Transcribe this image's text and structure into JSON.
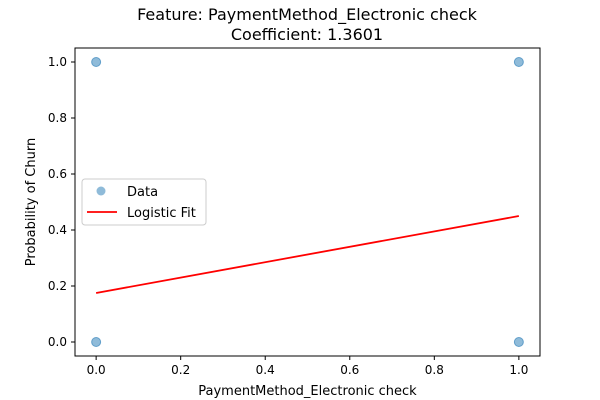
{
  "chart_data": {
    "type": "scatter",
    "title": "Feature: PaymentMethod_Electronic check",
    "subtitle": "Coefficient: 1.3601",
    "xlabel": "PaymentMethod_Electronic check",
    "ylabel": "Probability of Churn",
    "xlim": [
      -0.05,
      1.05
    ],
    "ylim": [
      -0.05,
      1.05
    ],
    "xticks": [
      0.0,
      0.2,
      0.4,
      0.6,
      0.8,
      1.0
    ],
    "yticks": [
      0.0,
      0.2,
      0.4,
      0.6,
      0.8,
      1.0
    ],
    "xtick_labels": [
      "0.0",
      "0.2",
      "0.4",
      "0.6",
      "0.8",
      "1.0"
    ],
    "ytick_labels": [
      "0.0",
      "0.2",
      "0.4",
      "0.6",
      "0.8",
      "1.0"
    ],
    "grid": false,
    "legend_position": "center-left",
    "series": [
      {
        "name": "Data",
        "kind": "scatter",
        "color": "#1f77b4",
        "points": [
          {
            "x": 0,
            "y": 0
          },
          {
            "x": 0,
            "y": 1
          },
          {
            "x": 1,
            "y": 0
          },
          {
            "x": 1,
            "y": 1
          }
        ]
      },
      {
        "name": "Logistic Fit",
        "kind": "line",
        "color": "#ff0000",
        "points": [
          {
            "x": 0,
            "y": 0.175
          },
          {
            "x": 1,
            "y": 0.45
          }
        ]
      }
    ]
  }
}
